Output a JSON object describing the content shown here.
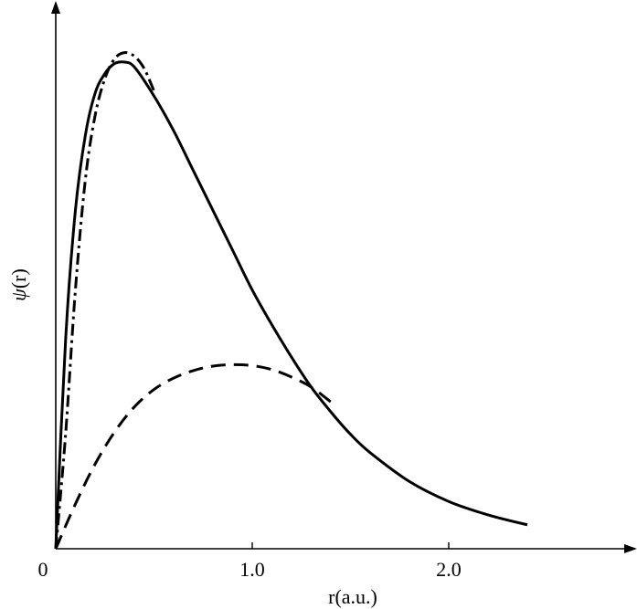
{
  "chart_data": {
    "type": "line",
    "xlabel": "r(a.u.)",
    "ylabel": "ψ(r)",
    "ylabel_symbol": "ψ",
    "ylabel_arg": "(r)",
    "xlim": [
      0,
      2.9
    ],
    "ylim": [
      0,
      1.0
    ],
    "x_ticks": [
      {
        "value": 0,
        "label": "0"
      },
      {
        "value": 1.0,
        "label": "1.0"
      },
      {
        "value": 2.0,
        "label": "2.0"
      }
    ],
    "grid": false,
    "legend": "none",
    "series": [
      {
        "style": "solid",
        "x": [
          0.0,
          0.05,
          0.1,
          0.15,
          0.2,
          0.25,
          0.3,
          0.35,
          0.4,
          0.5,
          0.6,
          0.7,
          0.8,
          0.9,
          1.0,
          1.1,
          1.2,
          1.3,
          1.4,
          1.5,
          1.6,
          1.8,
          2.0,
          2.2,
          2.4
        ],
        "y": [
          0.0,
          0.42,
          0.68,
          0.83,
          0.915,
          0.955,
          0.975,
          0.978,
          0.968,
          0.91,
          0.84,
          0.76,
          0.68,
          0.6,
          0.52,
          0.45,
          0.385,
          0.325,
          0.275,
          0.23,
          0.193,
          0.135,
          0.095,
          0.068,
          0.048
        ]
      },
      {
        "style": "dash-dot",
        "x": [
          0.0,
          0.05,
          0.1,
          0.15,
          0.2,
          0.25,
          0.3,
          0.35,
          0.4,
          0.45,
          0.5
        ],
        "y": [
          0.0,
          0.23,
          0.52,
          0.74,
          0.87,
          0.945,
          0.985,
          0.997,
          0.99,
          0.965,
          0.92
        ]
      },
      {
        "style": "dashed",
        "x": [
          0.0,
          0.1,
          0.2,
          0.3,
          0.4,
          0.5,
          0.6,
          0.7,
          0.8,
          0.9,
          1.0,
          1.1,
          1.2,
          1.3,
          1.4
        ],
        "y": [
          0.0,
          0.09,
          0.17,
          0.235,
          0.285,
          0.32,
          0.343,
          0.358,
          0.367,
          0.37,
          0.368,
          0.36,
          0.345,
          0.325,
          0.295
        ]
      }
    ]
  }
}
